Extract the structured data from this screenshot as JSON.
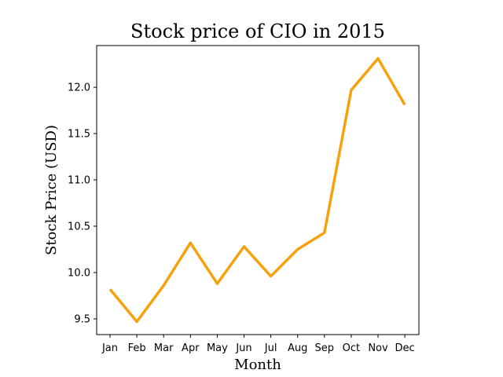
{
  "chart_data": {
    "type": "line",
    "title": "Stock price of CIO in 2015",
    "xlabel": "Month",
    "ylabel": "Stock Price (USD)",
    "categories": [
      "Jan",
      "Feb",
      "Mar",
      "Apr",
      "May",
      "Jun",
      "Jul",
      "Aug",
      "Sep",
      "Oct",
      "Nov",
      "Dec"
    ],
    "values": [
      9.82,
      9.47,
      9.86,
      10.32,
      9.88,
      10.28,
      9.96,
      10.25,
      10.43,
      11.97,
      12.31,
      11.81
    ],
    "ylim": [
      9.33,
      12.45
    ],
    "yticks": [
      "9.5",
      "10.0",
      "10.5",
      "11.0",
      "11.5",
      "12.0"
    ],
    "grid": false,
    "colors": {
      "line": "#f5a20c"
    }
  }
}
